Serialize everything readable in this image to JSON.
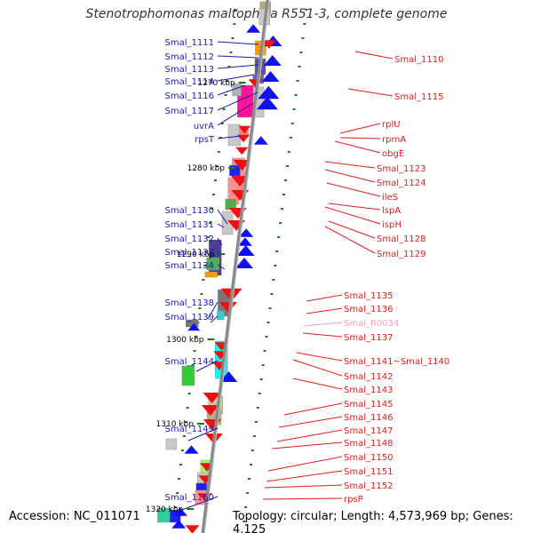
{
  "title": "Stenotrophomonas maltophilia R551-3, complete genome",
  "footer": {
    "accession": "Accession: NC_011071",
    "summary": "Topology: circular; Length: 4,573,969 bp; Genes: 4,125"
  },
  "colors": {
    "backbone": "#888888",
    "left_label": "#1a1ab0",
    "right_label": "#e31a1a",
    "rna_label": "#f29fbf",
    "tick": "#1a7a1a",
    "forward_gene": "#1010f0",
    "reverse_gene": "#f01010"
  },
  "ticks": [
    "1270 kbp",
    "1280 kbp",
    "1290 kbp",
    "1300 kbp",
    "1310 kbp",
    "1320 kbp"
  ],
  "left_genes": [
    "Smal_1111",
    "Smal_1112",
    "Smal_1113",
    "Smal_1114",
    "Smal_1116",
    "Smal_1117",
    "uvrA",
    "rpsT",
    "Smal_1130",
    "Smal_1131",
    "Smal_1132",
    "Smal_1133",
    "Smal_1134",
    "Smal_1138",
    "Smal_1139",
    "Smal_1144",
    "Smal_1149",
    "Smal_1160"
  ],
  "right_genes": [
    "Smal_1110",
    "Smal_1115",
    "rplU",
    "rpmA",
    "obgE",
    "Smal_1123",
    "Smal_1124",
    "ileS",
    "lspA",
    "ispH",
    "Smal_1128",
    "Smal_1129",
    "Smal_1135",
    "Smal_1136",
    "Smal_R0034",
    "Smal_1137",
    "Smal_1141~Smal_1140",
    "Smal_1142",
    "Smal_1143",
    "Smal_1145",
    "Smal_1146",
    "Smal_1147",
    "Smal_1148",
    "Smal_1150",
    "Smal_1151",
    "Smal_1152",
    "rpsP"
  ]
}
